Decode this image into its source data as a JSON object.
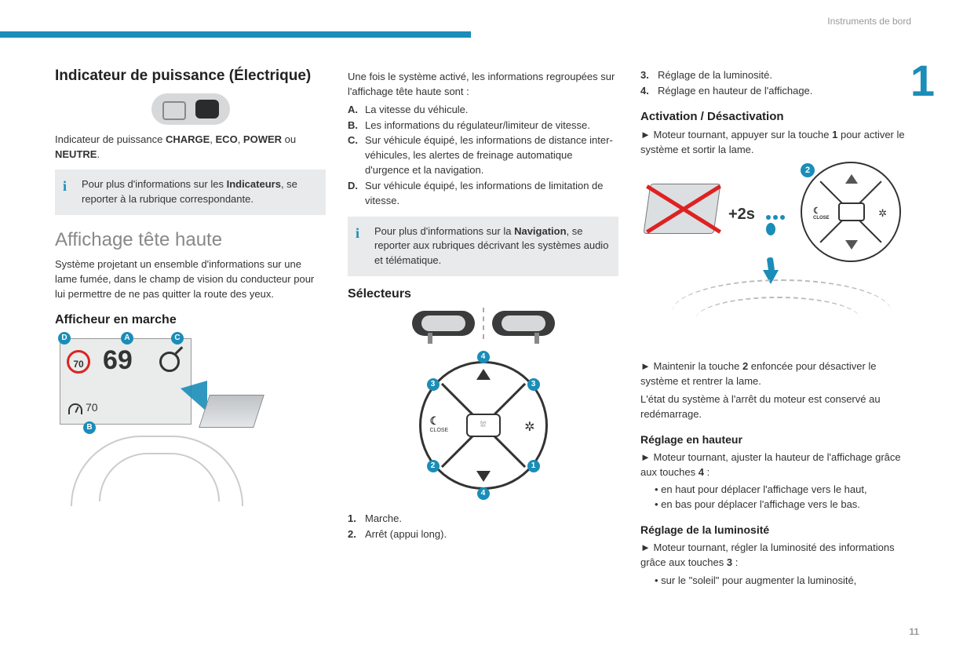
{
  "header": {
    "section_label": "Instruments de bord",
    "chapter_number": "1",
    "page_number": "11"
  },
  "colors": {
    "accent": "#1a8db8",
    "alert": "#d22222",
    "info_bg": "#e8eaec",
    "text_muted": "#888888"
  },
  "col1": {
    "h1": "Indicateur de puissance (Électrique)",
    "intro_pre": "Indicateur de puissance ",
    "kw1": "CHARGE",
    "sep1": ", ",
    "kw2": "ECO",
    "sep2": ", ",
    "kw3": "POWER",
    "intro_post": " ou ",
    "kw4": "NEUTRE",
    "intro_end": ".",
    "info_pre": "Pour plus d'informations sur les ",
    "info_bold": "Indicateurs",
    "info_post": ", se reporter à la rubrique correspondante.",
    "h2": "Affichage tête haute",
    "h2_para": "Système projetant un ensemble d'informations sur une lame fumée, dans le champ de vision du conducteur pour lui permettre de ne pas quitter la route des yeux.",
    "h3": "Afficheur en marche",
    "hud": {
      "speed_big": "69",
      "speed_small": "70",
      "limit_sign": "70",
      "markers": {
        "A": "A",
        "B": "B",
        "C": "C",
        "D": "D"
      }
    }
  },
  "col2": {
    "lead": "Une fois le système activé, les informations regroupées sur l'affichage tête haute sont :",
    "items": [
      {
        "lab": "A.",
        "txt": "La vitesse du véhicule."
      },
      {
        "lab": "B.",
        "txt": "Les informations du régulateur/limiteur de vitesse."
      },
      {
        "lab": "C.",
        "txt": "Sur véhicule équipé, les informations de distance inter-véhicules, les alertes de freinage automatique d'urgence et la navigation."
      },
      {
        "lab": "D.",
        "txt": "Sur véhicule équipé, les informations de limitation de vitesse."
      }
    ],
    "info_pre": "Pour plus d'informations sur la ",
    "info_bold": "Navigation",
    "info_post": ", se reporter aux rubriques décrivant les systèmes audio et télématique.",
    "h3": "Sélecteurs",
    "selector_markers": {
      "1": "1",
      "2": "2",
      "3": "3",
      "4": "4"
    },
    "selector_center": "⛆",
    "selector_moon": "☾",
    "selector_moon_sub": "CLOSE",
    "selector_sun": "✲",
    "list": [
      {
        "lab": "1.",
        "txt": "Marche."
      },
      {
        "lab": "2.",
        "txt": "Arrêt (appui long)."
      }
    ]
  },
  "col3": {
    "top_list": [
      {
        "lab": "3.",
        "txt": "Réglage de la luminosité."
      },
      {
        "lab": "4.",
        "txt": "Réglage en hauteur de l'affichage."
      }
    ],
    "h3a": "Activation / Désactivation",
    "act_line_pre": "Moteur tournant, appuyer sur la touche ",
    "act_line_b": "1",
    "act_line_post": " pour activer le système et sortir la lame.",
    "illus": {
      "plus2s": "+2s",
      "marker2": "2",
      "moon": "☾",
      "moon_sub": "CLOSE",
      "sun": "✲"
    },
    "deact_pre": "Maintenir la touche ",
    "deact_b": "2",
    "deact_post": " enfoncée pour désactiver le système et rentrer la lame.",
    "deact_p2": "L'état du système à l'arrêt du moteur est conservé au redémarrage.",
    "h3b": "Réglage en hauteur",
    "rh_pre": "Moteur tournant, ajuster la hauteur de l'affichage grâce aux touches ",
    "rh_b": "4",
    "rh_post": " :",
    "rh_bullets": [
      "en haut pour déplacer l'affichage vers le haut,",
      "en bas pour déplacer l'affichage vers le bas."
    ],
    "h3c": "Réglage de la luminosité",
    "rl_pre": "Moteur tournant, régler la luminosité des informations grâce aux touches ",
    "rl_b": "3",
    "rl_post": " :",
    "rl_bullets": [
      "sur le \"soleil\" pour augmenter la luminosité,"
    ]
  }
}
